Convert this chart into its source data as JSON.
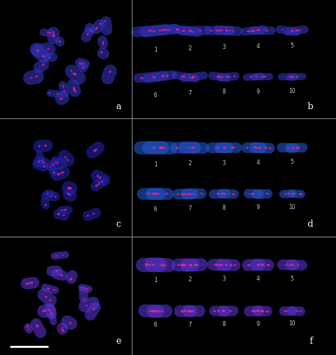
{
  "fig_width": 4.74,
  "fig_height": 5.01,
  "dpi": 100,
  "background": "#000000",
  "panel_labels": [
    "a",
    "b",
    "c",
    "d",
    "e",
    "f"
  ],
  "label_color": "#ffffff",
  "label_fontsize": 9,
  "grid_color": "#888888",
  "chr_numbers_top": [
    "1",
    "2",
    "3",
    "4",
    "5"
  ],
  "chr_numbers_bot": [
    "6",
    "7",
    "8",
    "9",
    "10"
  ],
  "chr_label_color": "#cccccc",
  "chr_label_fontsize": 5.5,
  "scale_bar_color": "#ffffff",
  "row_dividers": [
    0.333,
    0.667
  ],
  "col_divider": 0.5
}
